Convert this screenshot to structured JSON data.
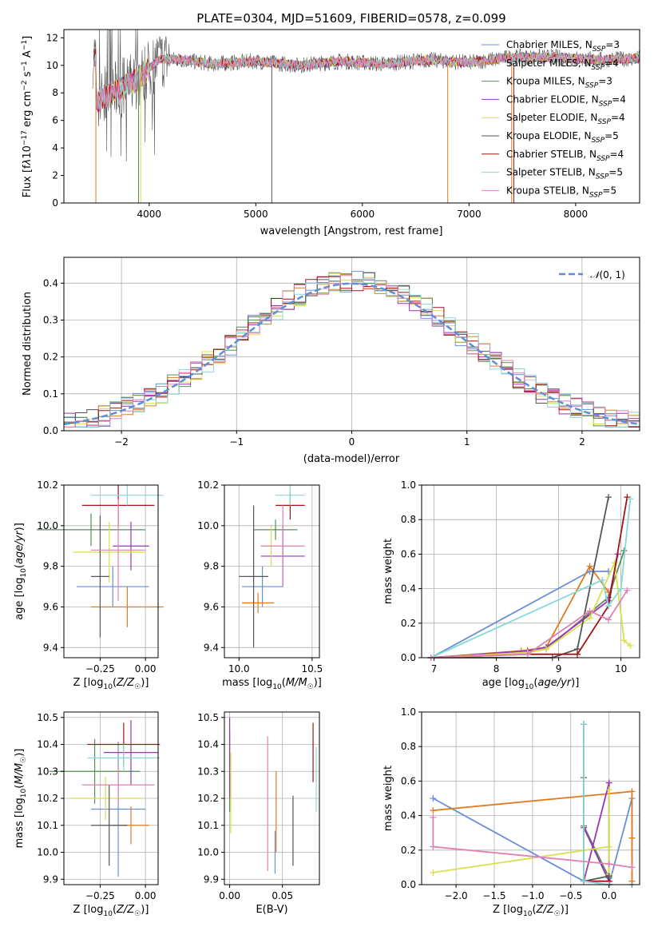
{
  "colors": [
    "#6a8fd6",
    "#e07b20",
    "#5b8a5b",
    "#9b35b3",
    "#d7e04a",
    "#555555",
    "#a11515",
    "#88d8d8",
    "#e080b5"
  ],
  "chart_data": [
    {
      "id": "spectrum",
      "type": "line",
      "title": "PLATE=0304, MJD=51609, FIBERID=0578, z=0.099",
      "xlabel": "wavelength [Angstrom, rest frame]",
      "ylabel_html": "Flux [f<tspan font-style='italic'>λ</tspan>10<tspan dy='-5' font-size='9'>−17</tspan><tspan dy='5'> erg cm</tspan><tspan dy='-5' font-size='9'>−2</tspan><tspan dy='5'> s</tspan><tspan dy='-5' font-size='9'>−1</tspan><tspan dy='5'> A</tspan><tspan dy='-5' font-size='9'>−1</tspan><tspan dy='5'>]</tspan>",
      "xlim": [
        3200,
        8600
      ],
      "ylim": [
        0,
        12.6
      ],
      "xticks": [
        4000,
        5000,
        6000,
        7000,
        8000
      ],
      "yticks": [
        0,
        2,
        4,
        6,
        8,
        10,
        12
      ],
      "legend_position": "upper right",
      "legend": [
        {
          "pre": "Chabrier MILES, N",
          "sub": "SSP",
          "post": "=3"
        },
        {
          "pre": "Salpeter MILES, N",
          "sub": "SSP",
          "post": "=4"
        },
        {
          "pre": "Kroupa MILES, N",
          "sub": "SSP",
          "post": "=3"
        },
        {
          "pre": "Chabrier ELODIE, N",
          "sub": "SSP",
          "post": "=4"
        },
        {
          "pre": "Salpeter ELODIE, N",
          "sub": "SSP",
          "post": "=4"
        },
        {
          "pre": "Kroupa ELODIE, N",
          "sub": "SSP",
          "post": "=5"
        },
        {
          "pre": "Chabrier STELIB, N",
          "sub": "SSP",
          "post": "=4"
        },
        {
          "pre": "Salpeter STELIB, N",
          "sub": "SSP",
          "post": "=5"
        },
        {
          "pre": "Kroupa STELIB, N",
          "sub": "SSP",
          "post": "=5"
        }
      ],
      "data_approx": {
        "x": [
          3500,
          3700,
          3900,
          4100,
          4300,
          4600,
          5000,
          5400,
          5800,
          6200,
          6600,
          7000,
          7400,
          7800,
          8200,
          8600
        ],
        "y": [
          7.4,
          8.2,
          9.0,
          10.5,
          10.4,
          10.1,
          10.3,
          10.0,
          10.3,
          10.1,
          10.4,
          10.2,
          10.6,
          10.6,
          10.4,
          10.5
        ]
      }
    },
    {
      "id": "residuals",
      "type": "histogram",
      "xlabel": "(data-model)/error",
      "ylabel": "Normed distribution",
      "xlim": [
        -2.5,
        2.5
      ],
      "ylim": [
        0,
        0.47
      ],
      "xticks": [
        -2,
        -1,
        0,
        1,
        2
      ],
      "yticks": [
        0,
        0.1,
        0.2,
        0.3,
        0.4
      ],
      "grid": true,
      "legend": {
        "label": "N(0,1)",
        "position": "upper right"
      },
      "bin_width": 0.1
    },
    {
      "id": "age-vs-Z",
      "type": "errorbar",
      "xlabel": "Z [log10(Z/Z☉)]",
      "ylabel": "age [log10(age/yr)]",
      "xlim": [
        -0.45,
        0.07
      ],
      "ylim": [
        9.35,
        10.2
      ],
      "xticks": [
        -0.25,
        0
      ],
      "xticklabels": [
        "−0.25",
        "0.00"
      ],
      "yticks": [
        9.4,
        9.6,
        9.8,
        10.0,
        10.2
      ],
      "grid": true,
      "points": [
        {
          "x": -0.18,
          "y": 9.7,
          "xerr": 0.2,
          "yerr": 0.1,
          "c": 0
        },
        {
          "x": -0.1,
          "y": 9.6,
          "xerr": 0.2,
          "yerr": 0.1,
          "c": 1
        },
        {
          "x": -0.3,
          "y": 9.98,
          "xerr": 0.3,
          "yerr": 0.08,
          "c": 2
        },
        {
          "x": -0.08,
          "y": 9.9,
          "xerr": 0.1,
          "yerr": 0.12,
          "c": 3
        },
        {
          "x": -0.2,
          "y": 9.87,
          "xerr": 0.2,
          "yerr": 0.15,
          "c": 4
        },
        {
          "x": -0.25,
          "y": 9.75,
          "xerr": 0.05,
          "yerr": 0.3,
          "c": 5
        },
        {
          "x": -0.15,
          "y": 10.1,
          "xerr": 0.2,
          "yerr": 0.1,
          "c": 6
        },
        {
          "x": -0.1,
          "y": 10.15,
          "xerr": 0.2,
          "yerr": 0.05,
          "c": 7
        },
        {
          "x": -0.15,
          "y": 9.88,
          "xerr": 0.15,
          "yerr": 0.25,
          "c": 8
        }
      ]
    },
    {
      "id": "age-vs-mass",
      "type": "errorbar",
      "xlabel": "mass [log10(M/M☉)]",
      "ylabel": "",
      "xlim": [
        9.9,
        10.55
      ],
      "ylim": [
        9.35,
        10.2
      ],
      "xticks": [
        10.0,
        10.5
      ],
      "xticklabels": [
        "10.0",
        "10.5"
      ],
      "yticks": [
        9.4,
        9.6,
        9.8,
        10.0,
        10.2
      ],
      "grid": true,
      "points": [
        {
          "x": 10.16,
          "y": 9.7,
          "xerr": 0.14,
          "yerr": 0.1,
          "c": 0
        },
        {
          "x": 10.13,
          "y": 9.62,
          "xerr": 0.11,
          "yerr": 0.05,
          "c": 1
        },
        {
          "x": 10.25,
          "y": 9.98,
          "xerr": 0.15,
          "yerr": 0.05,
          "c": 2
        },
        {
          "x": 10.3,
          "y": 9.85,
          "xerr": 0.15,
          "yerr": 0.15,
          "c": 3
        },
        {
          "x": 10.22,
          "y": 9.9,
          "xerr": 0.07,
          "yerr": 0.1,
          "c": 4
        },
        {
          "x": 10.1,
          "y": 9.75,
          "xerr": 0.1,
          "yerr": 0.35,
          "c": 5
        },
        {
          "x": 10.35,
          "y": 10.1,
          "xerr": 0.1,
          "yerr": 0.07,
          "c": 6
        },
        {
          "x": 10.35,
          "y": 10.15,
          "xerr": 0.1,
          "yerr": 0.05,
          "c": 7
        },
        {
          "x": 10.3,
          "y": 9.9,
          "xerr": 0.15,
          "yerr": 0.2,
          "c": 8
        }
      ]
    },
    {
      "id": "mass-weight-vs-age",
      "type": "line",
      "xlabel": "age [log10(age/yr)]",
      "ylabel": "mass weight",
      "xlim": [
        6.8,
        10.3
      ],
      "ylim": [
        0,
        1
      ],
      "xticks": [
        7,
        8,
        9,
        10
      ],
      "yticks": [
        0,
        0.2,
        0.4,
        0.6,
        0.8,
        1.0
      ],
      "grid": true,
      "series": [
        {
          "c": 0,
          "x": [
            6.95,
            9.5,
            9.8
          ],
          "y": [
            0.0,
            0.5,
            0.5
          ]
        },
        {
          "c": 1,
          "x": [
            6.95,
            8.4,
            8.8,
            9.5,
            9.8
          ],
          "y": [
            0.0,
            0.04,
            0.06,
            0.53,
            0.38
          ]
        },
        {
          "c": 2,
          "x": [
            6.95,
            8.5,
            8.8,
            9.8,
            10.05
          ],
          "y": [
            0.0,
            0.03,
            0.05,
            0.35,
            0.62
          ]
        },
        {
          "c": 3,
          "x": [
            6.95,
            8.5,
            8.8,
            9.8,
            9.95
          ],
          "y": [
            0.0,
            0.04,
            0.06,
            0.33,
            0.6
          ]
        },
        {
          "c": 4,
          "x": [
            6.95,
            8.5,
            8.8,
            9.5,
            9.9,
            10.05,
            10.15
          ],
          "y": [
            0.0,
            0.03,
            0.05,
            0.23,
            0.55,
            0.1,
            0.07
          ]
        },
        {
          "c": 5,
          "x": [
            6.95,
            8.9,
            9.3,
            9.8
          ],
          "y": [
            0.0,
            0.0,
            0.05,
            0.93
          ]
        },
        {
          "c": 6,
          "x": [
            6.95,
            8.5,
            9.3,
            9.8,
            10.1
          ],
          "y": [
            0.0,
            0.02,
            0.02,
            0.3,
            0.93
          ]
        },
        {
          "c": 7,
          "x": [
            6.95,
            9.7,
            9.8,
            10.0,
            10.15
          ],
          "y": [
            0.0,
            0.45,
            0.3,
            0.4,
            0.92
          ]
        },
        {
          "c": 8,
          "x": [
            6.95,
            8.5,
            9.5,
            9.8,
            10.1
          ],
          "y": [
            0.0,
            0.02,
            0.27,
            0.22,
            0.39
          ]
        }
      ]
    },
    {
      "id": "mass-vs-Z",
      "type": "errorbar",
      "xlabel": "Z [log10(Z/Z☉)]",
      "ylabel": "mass [log10(M/M☉)]",
      "xlim": [
        -0.45,
        0.07
      ],
      "ylim": [
        9.88,
        10.52
      ],
      "xticks": [
        -0.25,
        0
      ],
      "xticklabels": [
        "−0.25",
        "0.00"
      ],
      "yticks": [
        9.9,
        10.0,
        10.1,
        10.2,
        10.3,
        10.4,
        10.5
      ],
      "grid": true,
      "points": [
        {
          "x": -0.15,
          "y": 10.16,
          "xerr": 0.15,
          "yerr": 0.25,
          "c": 0
        },
        {
          "x": -0.08,
          "y": 10.1,
          "xerr": 0.1,
          "yerr": 0.07,
          "c": 1
        },
        {
          "x": -0.28,
          "y": 10.3,
          "xerr": 0.25,
          "yerr": 0.12,
          "c": 2
        },
        {
          "x": -0.08,
          "y": 10.37,
          "xerr": 0.15,
          "yerr": 0.12,
          "c": 3
        },
        {
          "x": -0.22,
          "y": 10.2,
          "xerr": 0.2,
          "yerr": 0.08,
          "c": 4
        },
        {
          "x": -0.2,
          "y": 10.1,
          "xerr": 0.1,
          "yerr": 0.15,
          "c": 5
        },
        {
          "x": -0.12,
          "y": 10.4,
          "xerr": 0.2,
          "yerr": 0.08,
          "c": 6
        },
        {
          "x": -0.12,
          "y": 10.35,
          "xerr": 0.2,
          "yerr": 0.05,
          "c": 7
        },
        {
          "x": -0.15,
          "y": 10.25,
          "xerr": 0.2,
          "yerr": 0.07,
          "c": 8
        }
      ]
    },
    {
      "id": "mass-vs-EBV",
      "type": "errorbar",
      "xlabel": "E(B-V)",
      "ylabel": "",
      "xlim": [
        -0.005,
        0.085
      ],
      "ylim": [
        9.88,
        10.52
      ],
      "xticks": [
        0.0,
        0.05
      ],
      "xticklabels": [
        "0.00",
        "0.05"
      ],
      "yticks": [
        9.9,
        10.0,
        10.1,
        10.2,
        10.3,
        10.4,
        10.5
      ],
      "grid": true,
      "points": [
        {
          "x": 0.043,
          "y": 10.0,
          "xerr": 0,
          "yerr": 0.08,
          "c": 0
        },
        {
          "x": 0.044,
          "y": 10.15,
          "xerr": 0,
          "yerr": 0.15,
          "c": 1
        },
        {
          "x": 0.0,
          "y": 10.3,
          "xerr": 0,
          "yerr": 0.15,
          "c": 2
        },
        {
          "x": 0.0,
          "y": 10.35,
          "xerr": 0,
          "yerr": 0.15,
          "c": 3
        },
        {
          "x": 0.001,
          "y": 10.22,
          "xerr": 0,
          "yerr": 0.15,
          "c": 4
        },
        {
          "x": 0.06,
          "y": 10.08,
          "xerr": 0,
          "yerr": 0.13,
          "c": 5
        },
        {
          "x": 0.079,
          "y": 10.37,
          "xerr": 0,
          "yerr": 0.11,
          "c": 6
        },
        {
          "x": 0.082,
          "y": 10.27,
          "xerr": 0,
          "yerr": 0.12,
          "c": 7
        },
        {
          "x": 0.036,
          "y": 10.18,
          "xerr": 0,
          "yerr": 0.25,
          "c": 8
        }
      ]
    },
    {
      "id": "mass-weight-vs-Z",
      "type": "line",
      "xlabel": "Z [log10(Z/Z☉)]",
      "ylabel": "mass weight",
      "xlim": [
        -2.45,
        0.4
      ],
      "ylim": [
        0,
        1
      ],
      "xticks": [
        -2.0,
        -1.5,
        -1.0,
        -0.5,
        0.0
      ],
      "xticklabels": [
        "−2.0",
        "−1.5",
        "−1.0",
        "−0.5",
        "0.0"
      ],
      "yticks": [
        0,
        0.2,
        0.4,
        0.6,
        0.8,
        1.0
      ],
      "grid": true,
      "series": [
        {
          "c": 0,
          "x": [
            -2.3,
            -0.33,
            0.0,
            0.3,
            0.3
          ],
          "y": [
            0.5,
            0.02,
            0.0,
            0.5,
            0.0
          ]
        },
        {
          "c": 1,
          "x": [
            -2.3,
            0.3,
            0.3,
            0.3
          ],
          "y": [
            0.43,
            0.54,
            0.27,
            0.02
          ]
        },
        {
          "c": 2,
          "x": [
            -0.33,
            -0.33,
            -0.33,
            0.0
          ],
          "y": [
            0.93,
            0.62,
            0.34,
            0.04
          ]
        },
        {
          "c": 3,
          "x": [
            -0.33,
            0.0,
            0.0,
            -0.33
          ],
          "y": [
            0.33,
            0.02,
            0.59,
            0.02
          ]
        },
        {
          "c": 4,
          "x": [
            -2.3,
            0.0,
            0.0,
            0.0
          ],
          "y": [
            0.07,
            0.22,
            0.55,
            0.06
          ]
        },
        {
          "c": 5,
          "x": [
            -0.33,
            -0.33,
            0.0
          ],
          "y": [
            0.93,
            0.02,
            0.05
          ]
        },
        {
          "c": 6,
          "x": [
            -0.33,
            0.0,
            0.0
          ],
          "y": [
            0.02,
            0.02,
            0.0
          ]
        },
        {
          "c": 7,
          "x": [
            -0.33,
            -0.33,
            0.0
          ],
          "y": [
            0.93,
            0.02,
            0.0
          ]
        },
        {
          "c": 8,
          "x": [
            -2.3,
            -2.3,
            0.0,
            0.3
          ],
          "y": [
            0.39,
            0.22,
            0.12,
            0.1
          ]
        }
      ]
    }
  ]
}
